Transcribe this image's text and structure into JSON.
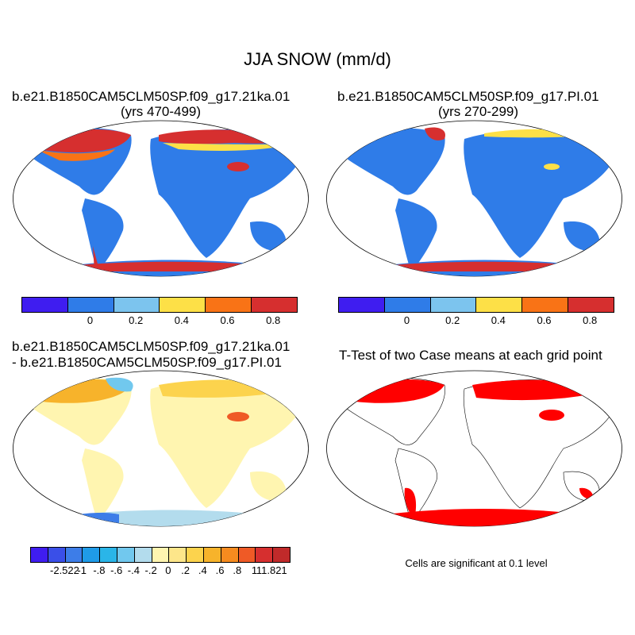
{
  "title": "JJA SNOW (mm/d)",
  "panels": [
    {
      "title_line1": "b.e21.B1850CAM5CLM50SP.f09_g17.21ka.01",
      "title_line2": "(yrs 470-499)"
    },
    {
      "title_line1": "b.e21.B1850CAM5CLM50SP.f09_g17.PI.01",
      "title_line2": "(yrs 270-299)"
    },
    {
      "title_line1": "b.e21.B1850CAM5CLM50SP.f09_g17.21ka.01",
      "title_line2": "- b.e21.B1850CAM5CLM50SP.f09_g17.PI.01"
    },
    {
      "title_line1": "T-Test of two Case means at each grid point"
    }
  ],
  "colorbar_abs": {
    "colors": [
      "#3f1df0",
      "#2f7ce8",
      "#7cc4ee",
      "#fde047",
      "#f97316",
      "#d62f2f"
    ],
    "labels": [
      "0",
      "0.2",
      "0.4",
      "0.6",
      "0.8"
    ]
  },
  "colorbar_diff": {
    "colors": [
      "#3f1df0",
      "#3a4fe8",
      "#3d7de8",
      "#1f9be8",
      "#2ab5e8",
      "#71c8ee",
      "#b3dced",
      "#fff5b0",
      "#fde68a",
      "#fcd34d",
      "#f7b32b",
      "#f68b1f",
      "#ef5a26",
      "#d62f2f",
      "#c02a2a"
    ],
    "labels": [
      "-2.522",
      "-1",
      "-.8",
      "-.6",
      "-.4",
      "-.2",
      "0",
      ".2",
      ".4",
      ".6",
      ".8",
      "1",
      "11.821"
    ]
  },
  "significance_note": "Cells are significant at 0.1 level"
}
